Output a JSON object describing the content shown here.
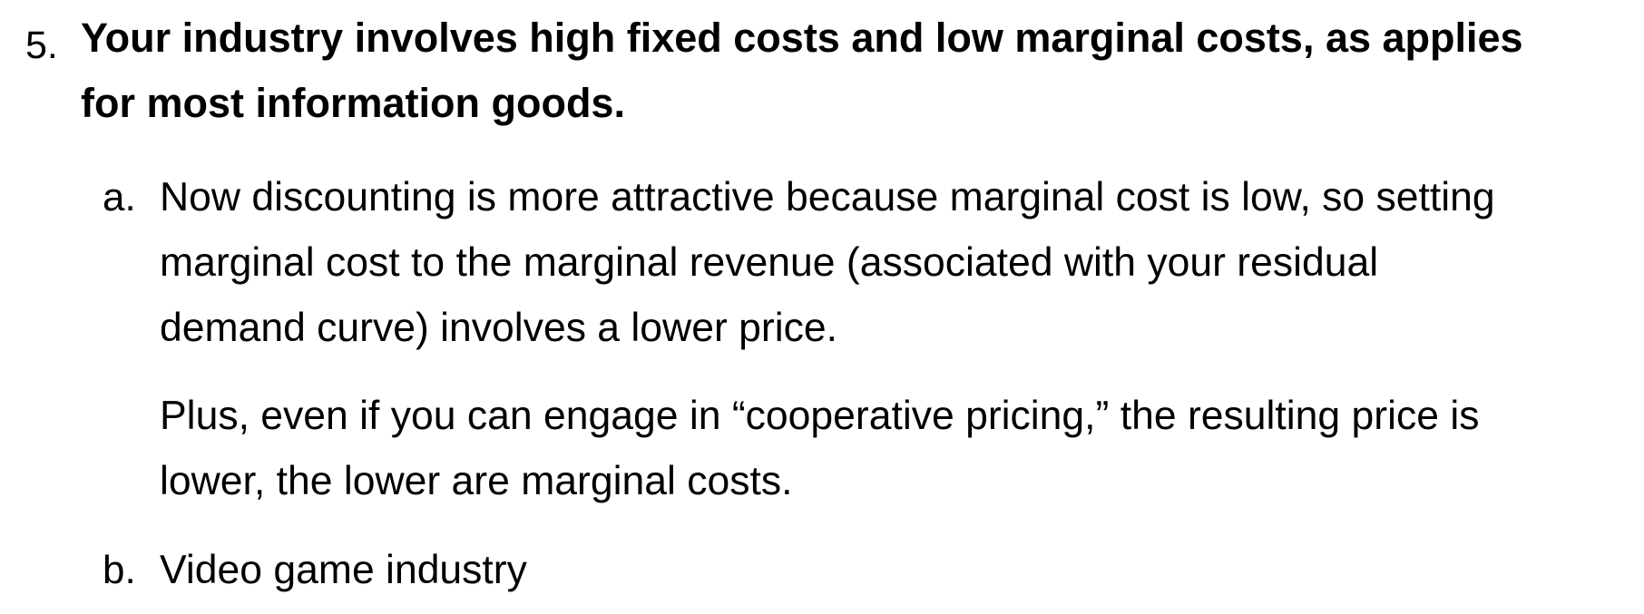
{
  "question": {
    "number": "5.",
    "lines": [
      "Your industry involves high fixed costs and low marginal costs, as applies",
      "for most information goods."
    ]
  },
  "parts": [
    {
      "marker": "a.",
      "paragraphs": [
        [
          "Now discounting is more attractive because marginal cost is low, so setting",
          "marginal cost to the marginal revenue (associated with your residual",
          "demand curve) involves a lower price."
        ],
        [
          "Plus, even if you can engage in “cooperative pricing,” the resulting price is",
          "lower, the lower are marginal costs."
        ]
      ]
    },
    {
      "marker": "b.",
      "paragraphs": [
        [
          "Video game industry"
        ]
      ]
    }
  ]
}
